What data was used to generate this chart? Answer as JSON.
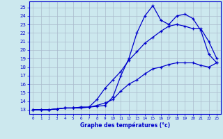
{
  "title": "Graphe des températures (°c)",
  "background_color": "#cce8ee",
  "grid_color": "#aabbcc",
  "line_color": "#0000cc",
  "xlim": [
    -0.5,
    23.5
  ],
  "ylim": [
    12.5,
    25.7
  ],
  "xticks": [
    0,
    1,
    2,
    3,
    4,
    5,
    6,
    7,
    8,
    9,
    10,
    11,
    12,
    13,
    14,
    15,
    16,
    17,
    18,
    19,
    20,
    21,
    22,
    23
  ],
  "yticks": [
    13,
    14,
    15,
    16,
    17,
    18,
    19,
    20,
    21,
    22,
    23,
    24,
    25
  ],
  "series": [
    {
      "x": [
        0,
        1,
        2,
        3,
        4,
        5,
        6,
        7,
        8,
        9,
        10,
        11,
        12,
        13,
        14,
        15,
        16,
        17,
        18,
        19,
        20,
        21,
        22,
        23
      ],
      "y": [
        13,
        13,
        13,
        13.1,
        13.2,
        13.2,
        13.3,
        13.3,
        13.4,
        13.5,
        14.5,
        17.0,
        19.0,
        22.0,
        24.0,
        25.2,
        23.5,
        23.0,
        24.0,
        24.2,
        23.7,
        22.3,
        19.5,
        18.5
      ]
    },
    {
      "x": [
        0,
        1,
        2,
        3,
        4,
        5,
        6,
        7,
        8,
        9,
        10,
        11,
        12,
        13,
        14,
        15,
        16,
        17,
        18,
        19,
        20,
        21,
        22,
        23
      ],
      "y": [
        13,
        13,
        13,
        13.1,
        13.2,
        13.2,
        13.3,
        13.3,
        14.2,
        15.5,
        16.5,
        17.5,
        18.8,
        19.8,
        20.8,
        21.5,
        22.2,
        22.8,
        23.0,
        22.8,
        22.5,
        22.5,
        21.0,
        19.0
      ]
    },
    {
      "x": [
        0,
        1,
        2,
        3,
        4,
        5,
        6,
        7,
        8,
        9,
        10,
        11,
        12,
        13,
        14,
        15,
        16,
        17,
        18,
        19,
        20,
        21,
        22,
        23
      ],
      "y": [
        13,
        13,
        13,
        13.1,
        13.2,
        13.2,
        13.2,
        13.3,
        13.5,
        13.8,
        14.2,
        15.2,
        16.0,
        16.5,
        17.2,
        17.8,
        18.0,
        18.3,
        18.5,
        18.5,
        18.5,
        18.2,
        18.0,
        18.5
      ]
    }
  ]
}
